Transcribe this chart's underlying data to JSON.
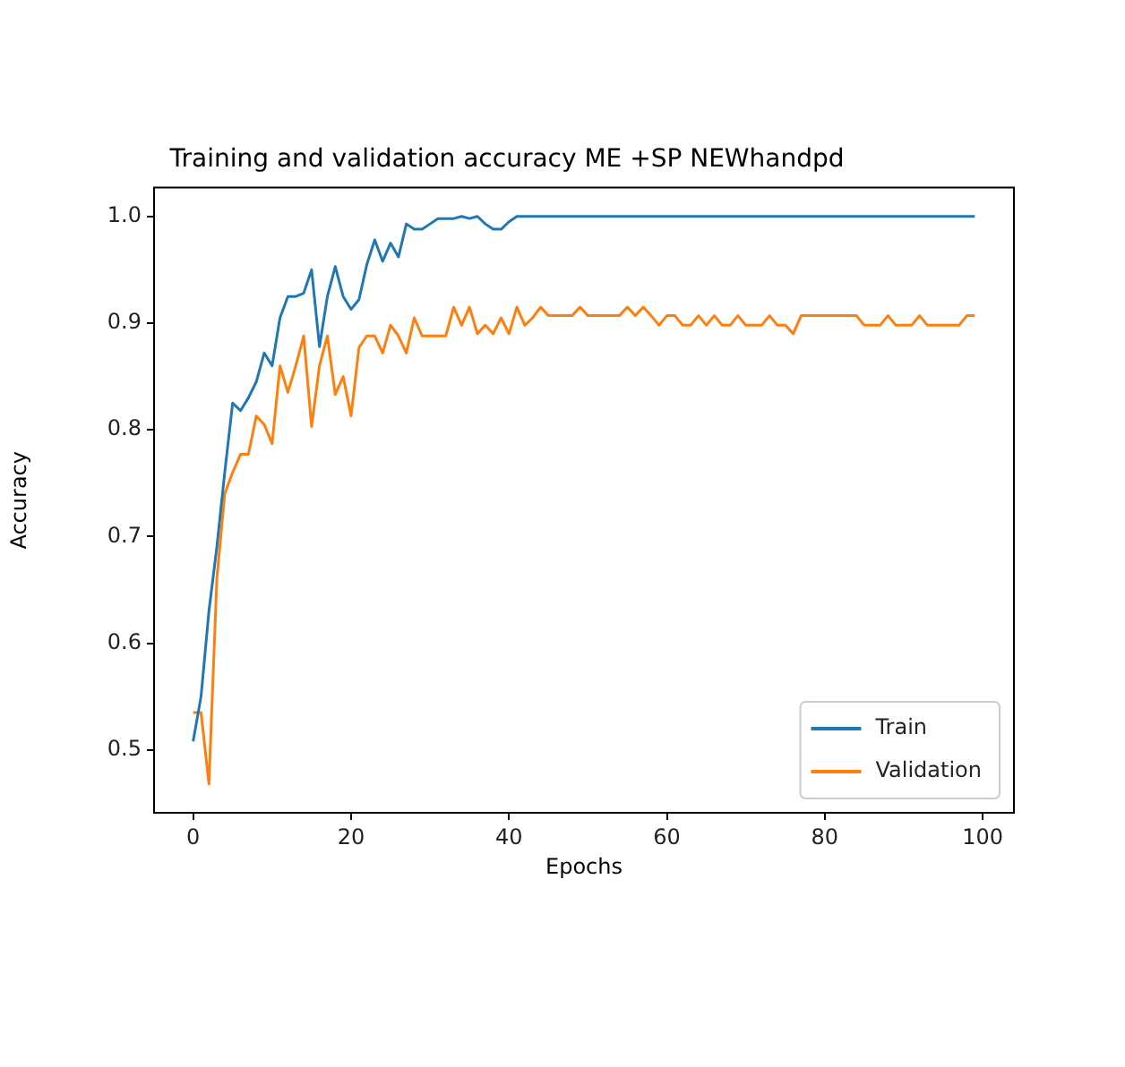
{
  "chart_data": {
    "type": "line",
    "title": "Training and validation accuracy ME +SP NEWhandpd",
    "xlabel": "Epochs",
    "ylabel": "Accuracy",
    "x": [
      0,
      1,
      2,
      3,
      4,
      5,
      6,
      7,
      8,
      9,
      10,
      11,
      12,
      13,
      14,
      15,
      16,
      17,
      18,
      19,
      20,
      21,
      22,
      23,
      24,
      25,
      26,
      27,
      28,
      29,
      30,
      31,
      32,
      33,
      34,
      35,
      36,
      37,
      38,
      39,
      40,
      41,
      42,
      43,
      44,
      45,
      46,
      47,
      48,
      49,
      50,
      51,
      52,
      53,
      54,
      55,
      56,
      57,
      58,
      59,
      60,
      61,
      62,
      63,
      64,
      65,
      66,
      67,
      68,
      69,
      70,
      71,
      72,
      73,
      74,
      75,
      76,
      77,
      78,
      79,
      80,
      81,
      82,
      83,
      84,
      85,
      86,
      87,
      88,
      89,
      90,
      91,
      92,
      93,
      94,
      95,
      96,
      97,
      98,
      99
    ],
    "series": [
      {
        "name": "Train",
        "color": "#1f77b4",
        "values": [
          0.508,
          0.55,
          0.63,
          0.69,
          0.76,
          0.825,
          0.818,
          0.83,
          0.845,
          0.872,
          0.86,
          0.905,
          0.925,
          0.925,
          0.928,
          0.95,
          0.878,
          0.925,
          0.953,
          0.925,
          0.913,
          0.922,
          0.955,
          0.978,
          0.958,
          0.975,
          0.962,
          0.993,
          0.988,
          0.988,
          0.993,
          0.998,
          0.998,
          0.998,
          1.0,
          0.998,
          1.0,
          0.993,
          0.988,
          0.988,
          0.995,
          1.0,
          1.0,
          1.0,
          1.0,
          1.0,
          1.0,
          1.0,
          1.0,
          1.0,
          1.0,
          1.0,
          1.0,
          1.0,
          1.0,
          1.0,
          1.0,
          1.0,
          1.0,
          1.0,
          1.0,
          1.0,
          1.0,
          1.0,
          1.0,
          1.0,
          1.0,
          1.0,
          1.0,
          1.0,
          1.0,
          1.0,
          1.0,
          1.0,
          1.0,
          1.0,
          1.0,
          1.0,
          1.0,
          1.0,
          1.0,
          1.0,
          1.0,
          1.0,
          1.0,
          1.0,
          1.0,
          1.0,
          1.0,
          1.0,
          1.0,
          1.0,
          1.0,
          1.0,
          1.0,
          1.0,
          1.0,
          1.0,
          1.0,
          1.0
        ]
      },
      {
        "name": "Validation",
        "color": "#ff7f0e",
        "values": [
          0.535,
          0.535,
          0.468,
          0.66,
          0.74,
          0.76,
          0.777,
          0.777,
          0.813,
          0.805,
          0.787,
          0.86,
          0.835,
          0.86,
          0.888,
          0.803,
          0.86,
          0.888,
          0.833,
          0.85,
          0.813,
          0.877,
          0.888,
          0.888,
          0.872,
          0.898,
          0.888,
          0.872,
          0.905,
          0.888,
          0.888,
          0.888,
          0.888,
          0.915,
          0.898,
          0.915,
          0.89,
          0.898,
          0.89,
          0.905,
          0.89,
          0.915,
          0.898,
          0.905,
          0.915,
          0.907,
          0.907,
          0.907,
          0.907,
          0.915,
          0.907,
          0.907,
          0.907,
          0.907,
          0.907,
          0.915,
          0.907,
          0.915,
          0.907,
          0.898,
          0.907,
          0.907,
          0.898,
          0.898,
          0.907,
          0.898,
          0.907,
          0.898,
          0.898,
          0.907,
          0.898,
          0.898,
          0.898,
          0.907,
          0.898,
          0.898,
          0.89,
          0.907,
          0.907,
          0.907,
          0.907,
          0.907,
          0.907,
          0.907,
          0.907,
          0.898,
          0.898,
          0.898,
          0.907,
          0.898,
          0.898,
          0.898,
          0.907,
          0.898,
          0.898,
          0.898,
          0.898,
          0.898,
          0.907,
          0.907
        ]
      }
    ],
    "xlim": [
      -4.95,
      103.95
    ],
    "xticks": [
      0,
      20,
      40,
      60,
      80,
      100
    ],
    "ylim": [
      0.441,
      1.027
    ],
    "yticks": [
      0.5,
      0.6,
      0.7,
      0.8,
      0.9,
      {
        "value": 1.0,
        "label": "1.0"
      }
    ],
    "grid": false,
    "legend": "lower right",
    "marker": "none",
    "line_style": "solid"
  }
}
